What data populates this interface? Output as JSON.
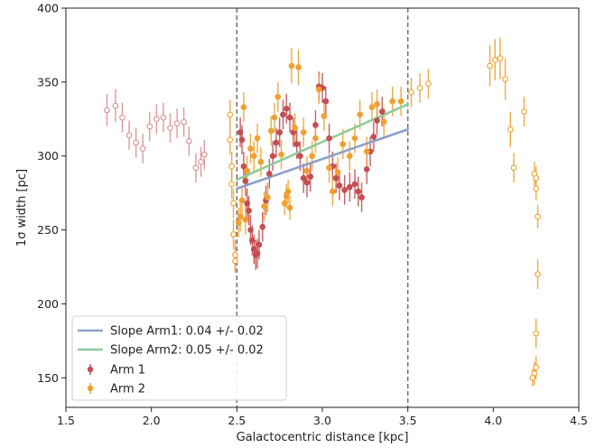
{
  "chart_data": {
    "type": "scatter",
    "xlabel": "Galactocentric distance [kpc]",
    "ylabel": "1σ width [pc]",
    "xlim": [
      1.5,
      4.5
    ],
    "ylim": [
      130,
      400
    ],
    "xticks": [
      "1.5",
      "2.0",
      "2.5",
      "3.0",
      "3.5",
      "4.0",
      "4.5"
    ],
    "yticks": [
      "150",
      "200",
      "250",
      "300",
      "350",
      "400"
    ],
    "grid": false,
    "legend_position": "bottom-left",
    "vlines": [
      2.5,
      3.5
    ],
    "colors": {
      "arm1": "#c44e52",
      "arm1_outside": "#d98f94",
      "arm2": "#f0a030",
      "fit1": "#8da0cb",
      "fit2": "#8fca9a",
      "vline": "#707070"
    },
    "fits": [
      {
        "label": "Slope Arm1: 0.04 +/- 0.02",
        "x": [
          2.5,
          3.5
        ],
        "y": [
          278,
          318
        ]
      },
      {
        "label": "Slope Arm2: 0.05 +/- 0.02",
        "x": [
          2.5,
          3.5
        ],
        "y": [
          284,
          335
        ]
      }
    ],
    "series": [
      {
        "name": "Arm 1",
        "open_points": [
          {
            "x": 1.74,
            "y": 331,
            "err": 11
          },
          {
            "x": 1.79,
            "y": 334,
            "err": 11
          },
          {
            "x": 1.83,
            "y": 326,
            "err": 10
          },
          {
            "x": 1.87,
            "y": 314,
            "err": 10
          },
          {
            "x": 1.91,
            "y": 309,
            "err": 10
          },
          {
            "x": 1.95,
            "y": 305,
            "err": 10
          },
          {
            "x": 1.99,
            "y": 320,
            "err": 10
          },
          {
            "x": 2.03,
            "y": 325,
            "err": 10
          },
          {
            "x": 2.07,
            "y": 326,
            "err": 10
          },
          {
            "x": 2.11,
            "y": 319,
            "err": 10
          },
          {
            "x": 2.15,
            "y": 322,
            "err": 10
          },
          {
            "x": 2.19,
            "y": 323,
            "err": 10
          },
          {
            "x": 2.22,
            "y": 310,
            "err": 10
          },
          {
            "x": 2.26,
            "y": 292,
            "err": 10
          },
          {
            "x": 2.29,
            "y": 296,
            "err": 10
          },
          {
            "x": 2.31,
            "y": 301,
            "err": 10
          }
        ],
        "points": [
          {
            "x": 2.52,
            "y": 316,
            "err": 10
          },
          {
            "x": 2.53,
            "y": 311,
            "err": 10
          },
          {
            "x": 2.54,
            "y": 293,
            "err": 10
          },
          {
            "x": 2.55,
            "y": 283,
            "err": 10
          },
          {
            "x": 2.56,
            "y": 268,
            "err": 10
          },
          {
            "x": 2.57,
            "y": 263,
            "err": 10
          },
          {
            "x": 2.58,
            "y": 250,
            "err": 10
          },
          {
            "x": 2.59,
            "y": 243,
            "err": 10
          },
          {
            "x": 2.6,
            "y": 237,
            "err": 10
          },
          {
            "x": 2.61,
            "y": 233,
            "err": 10
          },
          {
            "x": 2.62,
            "y": 234,
            "err": 10
          },
          {
            "x": 2.63,
            "y": 240,
            "err": 10
          },
          {
            "x": 2.65,
            "y": 252,
            "err": 10
          },
          {
            "x": 2.67,
            "y": 270,
            "err": 10
          },
          {
            "x": 2.69,
            "y": 288,
            "err": 10
          },
          {
            "x": 2.71,
            "y": 300,
            "err": 10
          },
          {
            "x": 2.73,
            "y": 309,
            "err": 10
          },
          {
            "x": 2.75,
            "y": 316,
            "err": 10
          },
          {
            "x": 2.77,
            "y": 328,
            "err": 10
          },
          {
            "x": 2.79,
            "y": 332,
            "err": 10
          },
          {
            "x": 2.81,
            "y": 326,
            "err": 10
          },
          {
            "x": 2.83,
            "y": 316,
            "err": 10
          },
          {
            "x": 2.85,
            "y": 308,
            "err": 10
          },
          {
            "x": 2.87,
            "y": 300,
            "err": 10
          },
          {
            "x": 2.89,
            "y": 285,
            "err": 10
          },
          {
            "x": 2.91,
            "y": 282,
            "err": 10
          },
          {
            "x": 2.93,
            "y": 286,
            "err": 10
          },
          {
            "x": 2.96,
            "y": 321,
            "err": 10
          },
          {
            "x": 2.98,
            "y": 347,
            "err": 10
          },
          {
            "x": 3.0,
            "y": 346,
            "err": 10
          },
          {
            "x": 3.02,
            "y": 337,
            "err": 10
          },
          {
            "x": 3.04,
            "y": 312,
            "err": 10
          },
          {
            "x": 3.06,
            "y": 293,
            "err": 10
          },
          {
            "x": 3.08,
            "y": 285,
            "err": 10
          },
          {
            "x": 3.1,
            "y": 280,
            "err": 10
          },
          {
            "x": 3.13,
            "y": 277,
            "err": 10
          },
          {
            "x": 3.16,
            "y": 279,
            "err": 10
          },
          {
            "x": 3.19,
            "y": 281,
            "err": 10
          },
          {
            "x": 3.21,
            "y": 276,
            "err": 10
          },
          {
            "x": 3.23,
            "y": 272,
            "err": 10
          },
          {
            "x": 3.26,
            "y": 291,
            "err": 10
          },
          {
            "x": 3.28,
            "y": 303,
            "err": 10
          },
          {
            "x": 3.3,
            "y": 313,
            "err": 10
          },
          {
            "x": 3.32,
            "y": 324,
            "err": 10
          },
          {
            "x": 3.35,
            "y": 330,
            "err": 10
          }
        ]
      },
      {
        "name": "Arm 2",
        "open_points": [
          {
            "x": 2.46,
            "y": 328,
            "err": 10
          },
          {
            "x": 2.46,
            "y": 311,
            "err": 10
          },
          {
            "x": 2.47,
            "y": 293,
            "err": 10
          },
          {
            "x": 2.47,
            "y": 281,
            "err": 10
          },
          {
            "x": 2.48,
            "y": 268,
            "err": 10
          },
          {
            "x": 2.48,
            "y": 247,
            "err": 10
          },
          {
            "x": 2.49,
            "y": 233,
            "err": 10
          },
          {
            "x": 2.49,
            "y": 229,
            "err": 8
          },
          {
            "x": 3.52,
            "y": 343,
            "err": 10
          },
          {
            "x": 3.57,
            "y": 346,
            "err": 10
          },
          {
            "x": 3.62,
            "y": 349,
            "err": 10
          },
          {
            "x": 3.98,
            "y": 361,
            "err": 14
          },
          {
            "x": 4.01,
            "y": 365,
            "err": 14
          },
          {
            "x": 4.04,
            "y": 366,
            "err": 14
          },
          {
            "x": 4.07,
            "y": 352,
            "err": 14
          },
          {
            "x": 4.1,
            "y": 318,
            "err": 12
          },
          {
            "x": 4.12,
            "y": 292,
            "err": 10
          },
          {
            "x": 4.18,
            "y": 330,
            "err": 10
          },
          {
            "x": 4.24,
            "y": 288,
            "err": 8
          },
          {
            "x": 4.25,
            "y": 285,
            "err": 8
          },
          {
            "x": 4.25,
            "y": 278,
            "err": 8
          },
          {
            "x": 4.26,
            "y": 259,
            "err": 8
          },
          {
            "x": 4.26,
            "y": 220,
            "err": 10
          },
          {
            "x": 4.25,
            "y": 180,
            "err": 10
          },
          {
            "x": 4.25,
            "y": 157,
            "err": 8
          },
          {
            "x": 4.24,
            "y": 153,
            "err": 8
          },
          {
            "x": 4.23,
            "y": 150,
            "err": 6
          }
        ],
        "points": [
          {
            "x": 2.51,
            "y": 255,
            "err": 10
          },
          {
            "x": 2.52,
            "y": 259,
            "err": 10
          },
          {
            "x": 2.53,
            "y": 270,
            "err": 10
          },
          {
            "x": 2.54,
            "y": 333,
            "err": 10
          },
          {
            "x": 2.55,
            "y": 257,
            "err": 10
          },
          {
            "x": 2.56,
            "y": 290,
            "err": 10
          },
          {
            "x": 2.58,
            "y": 305,
            "err": 10
          },
          {
            "x": 2.6,
            "y": 300,
            "err": 10
          },
          {
            "x": 2.62,
            "y": 312,
            "err": 10
          },
          {
            "x": 2.64,
            "y": 296,
            "err": 10
          },
          {
            "x": 2.66,
            "y": 266,
            "err": 10
          },
          {
            "x": 2.68,
            "y": 272,
            "err": 10
          },
          {
            "x": 2.7,
            "y": 317,
            "err": 10
          },
          {
            "x": 2.72,
            "y": 326,
            "err": 10
          },
          {
            "x": 2.74,
            "y": 340,
            "err": 10
          },
          {
            "x": 2.76,
            "y": 301,
            "err": 10
          },
          {
            "x": 2.78,
            "y": 268,
            "err": 8
          },
          {
            "x": 2.79,
            "y": 273,
            "err": 8
          },
          {
            "x": 2.8,
            "y": 276,
            "err": 8
          },
          {
            "x": 2.81,
            "y": 265,
            "err": 8
          },
          {
            "x": 2.82,
            "y": 361,
            "err": 12
          },
          {
            "x": 2.84,
            "y": 319,
            "err": 10
          },
          {
            "x": 2.86,
            "y": 360,
            "err": 12
          },
          {
            "x": 2.89,
            "y": 316,
            "err": 10
          },
          {
            "x": 2.91,
            "y": 290,
            "err": 10
          },
          {
            "x": 2.94,
            "y": 300,
            "err": 10
          },
          {
            "x": 2.96,
            "y": 312,
            "err": 10
          },
          {
            "x": 2.98,
            "y": 345,
            "err": 10
          },
          {
            "x": 3.01,
            "y": 327,
            "err": 10
          },
          {
            "x": 3.04,
            "y": 292,
            "err": 10
          },
          {
            "x": 3.06,
            "y": 276,
            "err": 10
          },
          {
            "x": 3.09,
            "y": 289,
            "err": 10
          },
          {
            "x": 3.12,
            "y": 308,
            "err": 10
          },
          {
            "x": 3.16,
            "y": 300,
            "err": 10
          },
          {
            "x": 3.19,
            "y": 312,
            "err": 10
          },
          {
            "x": 3.22,
            "y": 328,
            "err": 10
          },
          {
            "x": 3.26,
            "y": 303,
            "err": 10
          },
          {
            "x": 3.29,
            "y": 333,
            "err": 10
          },
          {
            "x": 3.32,
            "y": 335,
            "err": 10
          },
          {
            "x": 3.36,
            "y": 323,
            "err": 10
          },
          {
            "x": 3.41,
            "y": 337,
            "err": 10
          },
          {
            "x": 3.46,
            "y": 337,
            "err": 10
          }
        ]
      }
    ]
  }
}
